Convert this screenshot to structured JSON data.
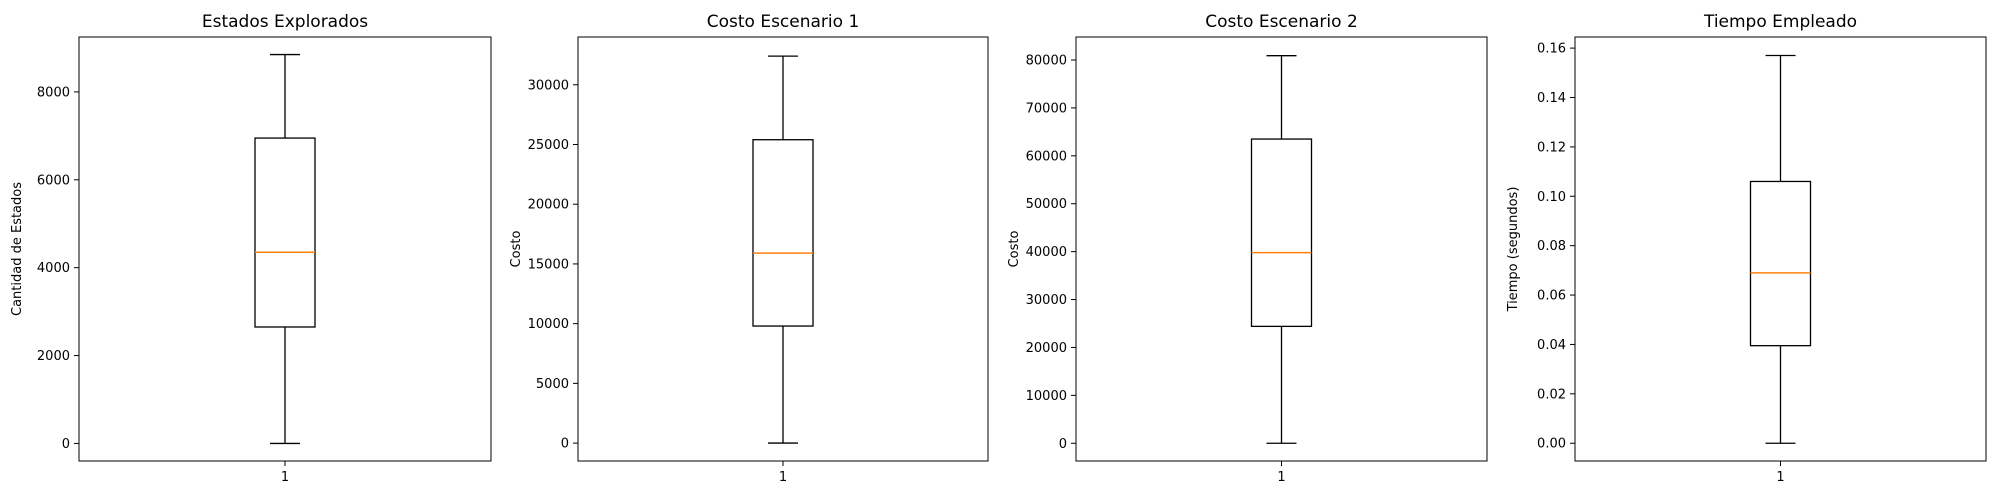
{
  "chart_data": [
    {
      "type": "box",
      "title": "Estados Explorados",
      "ylabel": "Cantidad de Estados",
      "categories": [
        "1"
      ],
      "box": {
        "min": 0,
        "q1": 2650,
        "median": 4350,
        "q3": 6950,
        "max": 8850
      },
      "ylim": [
        -400,
        9250
      ],
      "yticks": [
        0,
        2000,
        4000,
        6000,
        8000
      ],
      "ytick_labels": [
        "0",
        "2000",
        "4000",
        "6000",
        "8000"
      ]
    },
    {
      "type": "box",
      "title": "Costo Escenario 1",
      "ylabel": "Costo",
      "categories": [
        "1"
      ],
      "box": {
        "min": 0,
        "q1": 9800,
        "median": 15900,
        "q3": 25400,
        "max": 32400
      },
      "ylim": [
        -1500,
        34000
      ],
      "yticks": [
        0,
        5000,
        10000,
        15000,
        20000,
        25000,
        30000
      ],
      "ytick_labels": [
        "0",
        "5000",
        "10000",
        "15000",
        "20000",
        "25000",
        "30000"
      ]
    },
    {
      "type": "box",
      "title": "Costo Escenario 2",
      "ylabel": "Costo",
      "categories": [
        "1"
      ],
      "box": {
        "min": 0,
        "q1": 24400,
        "median": 39800,
        "q3": 63500,
        "max": 80900
      },
      "ylim": [
        -3700,
        84800
      ],
      "yticks": [
        0,
        10000,
        20000,
        30000,
        40000,
        50000,
        60000,
        70000,
        80000
      ],
      "ytick_labels": [
        "0",
        "10000",
        "20000",
        "30000",
        "40000",
        "50000",
        "60000",
        "70000",
        "80000"
      ]
    },
    {
      "type": "box",
      "title": "Tiempo Empleado",
      "ylabel": "Tiempo (segundos)",
      "categories": [
        "1"
      ],
      "box": {
        "min": 0.0,
        "q1": 0.0395,
        "median": 0.069,
        "q3": 0.106,
        "max": 0.157
      },
      "ylim": [
        -0.0072,
        0.1645
      ],
      "yticks": [
        0.0,
        0.02,
        0.04,
        0.06,
        0.08,
        0.1,
        0.12,
        0.14,
        0.16
      ],
      "ytick_labels": [
        "0.00",
        "0.02",
        "0.04",
        "0.06",
        "0.08",
        "0.10",
        "0.12",
        "0.14",
        "0.16"
      ]
    }
  ],
  "colors": {
    "box": "#000000",
    "median": "#ff7f0e",
    "background": "#ffffff"
  }
}
